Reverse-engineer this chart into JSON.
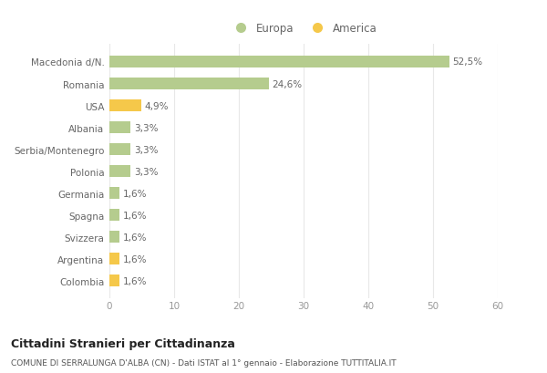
{
  "categories": [
    "Colombia",
    "Argentina",
    "Svizzera",
    "Spagna",
    "Germania",
    "Polonia",
    "Serbia/Montenegro",
    "Albania",
    "USA",
    "Romania",
    "Macedonia d/N."
  ],
  "values": [
    1.6,
    1.6,
    1.6,
    1.6,
    1.6,
    3.3,
    3.3,
    3.3,
    4.9,
    24.6,
    52.5
  ],
  "labels": [
    "1,6%",
    "1,6%",
    "1,6%",
    "1,6%",
    "1,6%",
    "3,3%",
    "3,3%",
    "3,3%",
    "4,9%",
    "24,6%",
    "52,5%"
  ],
  "colors": [
    "#f5c84a",
    "#f5c84a",
    "#b5cc8e",
    "#b5cc8e",
    "#b5cc8e",
    "#b5cc8e",
    "#b5cc8e",
    "#b5cc8e",
    "#f5c84a",
    "#b5cc8e",
    "#b5cc8e"
  ],
  "legend_europa_color": "#b5cc8e",
  "legend_america_color": "#f5c84a",
  "xlim": [
    0,
    60
  ],
  "xticks": [
    0,
    10,
    20,
    30,
    40,
    50,
    60
  ],
  "title": "Cittadini Stranieri per Cittadinanza",
  "subtitle": "COMUNE DI SERRALUNGA D'ALBA (CN) - Dati ISTAT al 1° gennaio - Elaborazione TUTTITALIA.IT",
  "background_color": "#ffffff",
  "bar_height": 0.55,
  "grid_color": "#e8e8e8",
  "label_color": "#666666",
  "tick_color": "#999999"
}
